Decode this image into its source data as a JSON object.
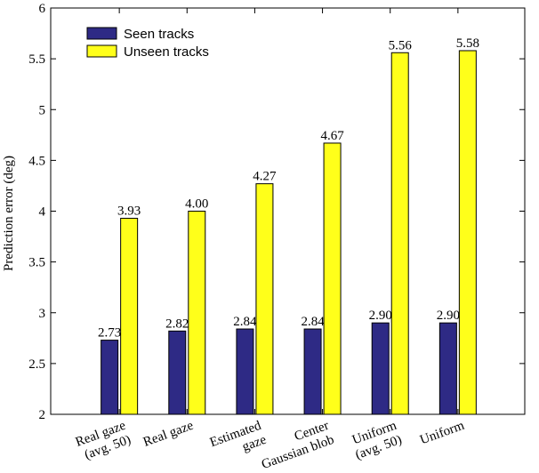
{
  "chart_data": {
    "type": "bar",
    "categories": [
      [
        "Real gaze",
        "(avg. 50)"
      ],
      [
        "Real gaze"
      ],
      [
        "Estimated",
        "gaze"
      ],
      [
        "Center",
        "Gaussian blob"
      ],
      [
        "Uniform",
        "(avg. 50)"
      ],
      [
        "Uniform"
      ]
    ],
    "series": [
      {
        "name": "Seen tracks",
        "color": "#2e2a85",
        "values": [
          2.73,
          2.82,
          2.84,
          2.84,
          2.9,
          2.9
        ],
        "labels": [
          "2.73",
          "2.82",
          "2.84",
          "2.84",
          "2.90",
          "2.90"
        ]
      },
      {
        "name": "Unseen tracks",
        "color": "#ffff1a",
        "values": [
          3.93,
          4.0,
          4.27,
          4.67,
          5.56,
          5.58
        ],
        "labels": [
          "3.93",
          "4.00",
          "4.27",
          "4.67",
          "5.56",
          "5.58"
        ]
      }
    ],
    "title": "",
    "xlabel": "",
    "ylabel": "Prediction error (deg)",
    "ylim": [
      2,
      6
    ],
    "yticks": [
      2,
      2.5,
      3,
      3.5,
      4,
      4.5,
      5,
      5.5,
      6
    ],
    "ytick_labels": [
      "2",
      "2.5",
      "3",
      "3.5",
      "4",
      "4.5",
      "5",
      "5.5",
      "6"
    ],
    "grid": false,
    "legend_position": "top-left"
  }
}
